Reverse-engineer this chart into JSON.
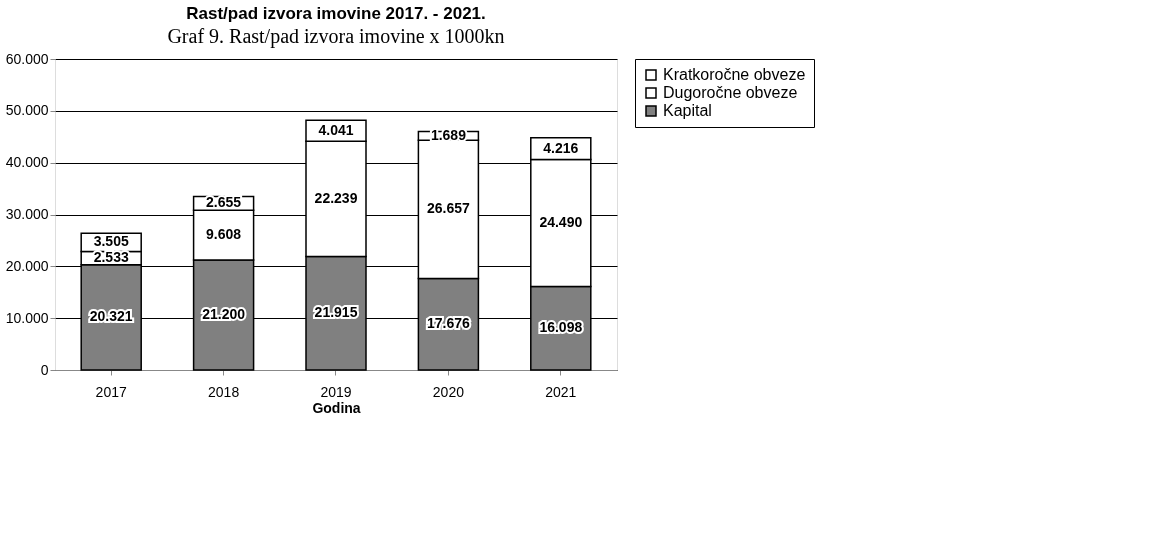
{
  "chart_data": {
    "type": "bar",
    "title": "Rast/pad izvora imovine 2017. - 2021.",
    "xlabel": "Godina",
    "stacked": true,
    "legend": "right",
    "grid": "y",
    "annotations": [
      "Graf 9. Rast/pad izvora imovine x 1000kn"
    ],
    "categories": [
      "2017",
      "2018",
      "2019",
      "2020",
      "2021"
    ],
    "ylim": [
      0,
      60000
    ],
    "yticks": [
      {
        "value": 0,
        "label": "0"
      },
      {
        "value": 10000,
        "label": "10.000"
      },
      {
        "value": 20000,
        "label": "20.000"
      },
      {
        "value": 30000,
        "label": "30.000"
      },
      {
        "value": 40000,
        "label": "40.000"
      },
      {
        "value": 50000,
        "label": "50.000"
      },
      {
        "value": 60000,
        "label": "60.000"
      }
    ],
    "series": [
      {
        "name": "Kapital",
        "color": "#808080",
        "values": [
          20321,
          21200,
          21915,
          17676,
          16098
        ],
        "value_labels": [
          "20.321",
          "21.200",
          "21.915",
          "17.676",
          "16.098"
        ]
      },
      {
        "name": "Dugoročne obveze",
        "color": "#ffffff",
        "values": [
          2533,
          9608,
          22239,
          26657,
          24490
        ],
        "value_labels": [
          "2.533",
          "9.608",
          "22.239",
          "26.657",
          "24.490"
        ]
      },
      {
        "name": "Kratkoročne obveze",
        "color": "#ffffff",
        "values": [
          3505,
          2655,
          4041,
          1689,
          4216
        ],
        "value_labels": [
          "3.505",
          "2.655",
          "4.041",
          "1.689",
          "4.216"
        ]
      }
    ]
  }
}
